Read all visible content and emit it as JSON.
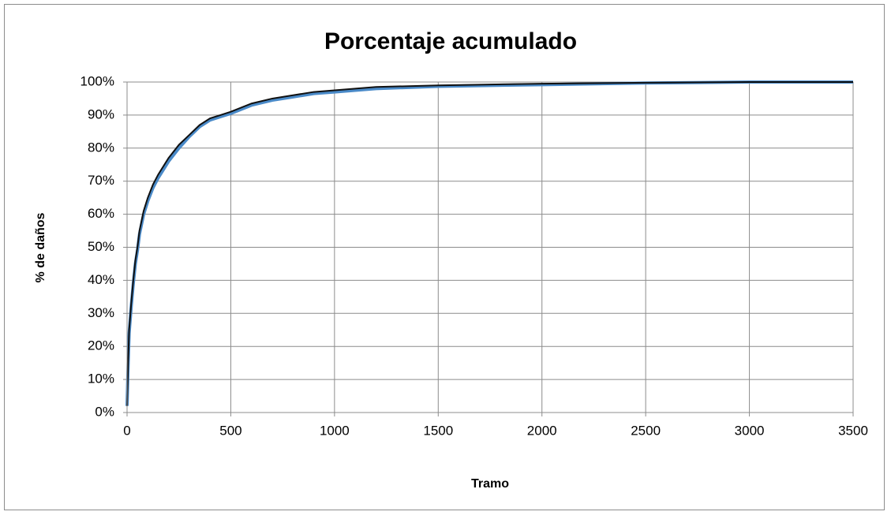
{
  "chart_data": {
    "type": "line",
    "title": "Porcentaje acumulado",
    "x_label": "Tramo",
    "y_label": "% de daños",
    "x": [
      0,
      5,
      10,
      20,
      30,
      40,
      50,
      60,
      80,
      100,
      125,
      150,
      200,
      250,
      300,
      350,
      400,
      450,
      500,
      600,
      700,
      800,
      900,
      1000,
      1200,
      1500,
      2000,
      2500,
      3000,
      3500
    ],
    "series": [
      {
        "color": "#4a8ac8",
        "values": [
          2,
          14,
          24,
          32,
          39,
          45,
          49,
          54,
          60,
          64,
          68,
          71,
          76,
          80,
          83.5,
          86.5,
          88.5,
          89.5,
          90.5,
          93,
          94.5,
          95.5,
          96.5,
          97,
          98,
          98.7,
          99.2,
          99.7,
          100,
          100
        ]
      },
      {
        "color": "#111111",
        "values": [
          2,
          15,
          25,
          33,
          40,
          46,
          50,
          55,
          61,
          65,
          69,
          72,
          77,
          81,
          84,
          87,
          89,
          90,
          91,
          93.5,
          95,
          96,
          97,
          97.5,
          98.5,
          99,
          99.5,
          99.8,
          100,
          100
        ]
      }
    ],
    "xlim": [
      0,
      3500
    ],
    "xticks": [
      0,
      500,
      1000,
      1500,
      2000,
      2500,
      3000,
      3500
    ],
    "ylim": [
      0,
      100
    ],
    "yticks": [
      {
        "value": 0,
        "label": "0%"
      },
      {
        "value": 10,
        "label": "10%"
      },
      {
        "value": 20,
        "label": "20%"
      },
      {
        "value": 30,
        "label": "30%"
      },
      {
        "value": 40,
        "label": "40%"
      },
      {
        "value": 50,
        "label": "50%"
      },
      {
        "value": 60,
        "label": "60%"
      },
      {
        "value": 70,
        "label": "70%"
      },
      {
        "value": 80,
        "label": "80%"
      },
      {
        "value": 90,
        "label": "90%"
      },
      {
        "value": 100,
        "label": "100%"
      }
    ],
    "grid": true
  }
}
